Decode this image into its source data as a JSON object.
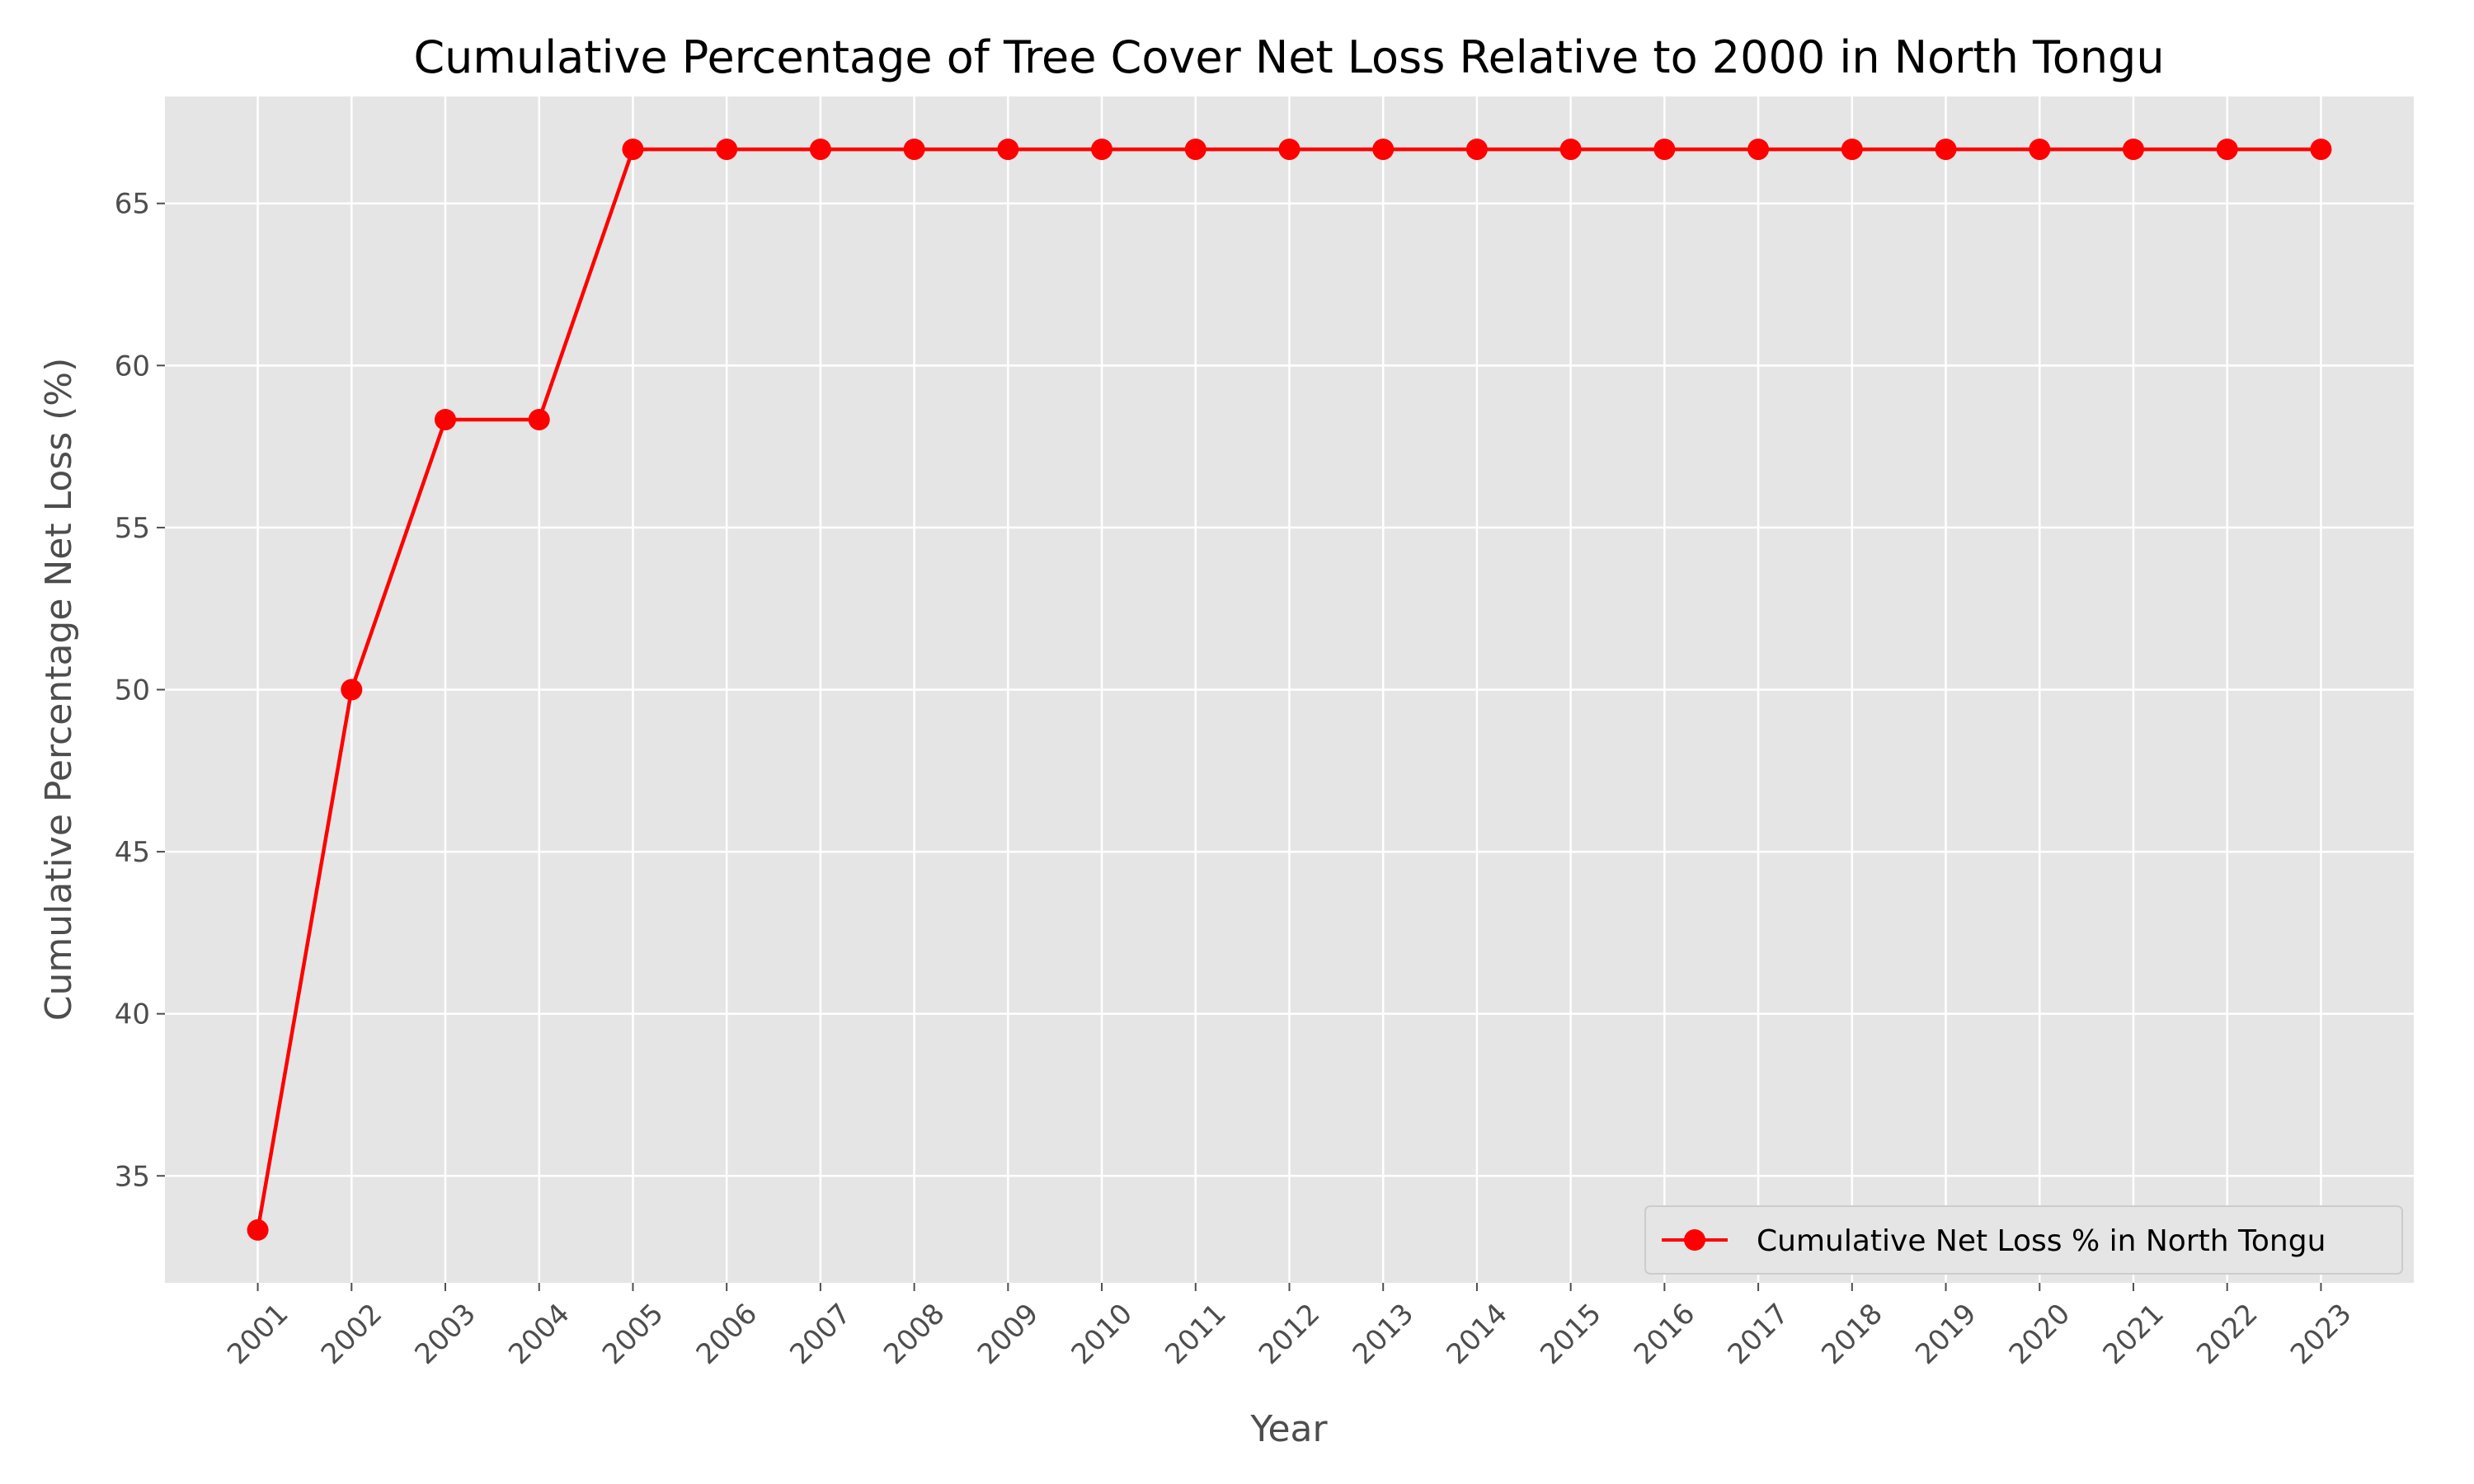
{
  "chart_data": {
    "type": "line",
    "title": "Cumulative Percentage of Tree Cover Net Loss Relative to 2000 in North Tongu",
    "xlabel": "Year",
    "ylabel": "Cumulative Percentage Net Loss (%)",
    "categories": [
      "2001",
      "2002",
      "2003",
      "2004",
      "2005",
      "2006",
      "2007",
      "2008",
      "2009",
      "2010",
      "2011",
      "2012",
      "2013",
      "2014",
      "2015",
      "2016",
      "2017",
      "2018",
      "2019",
      "2020",
      "2021",
      "2022",
      "2023"
    ],
    "series": [
      {
        "name": "Cumulative Net Loss % in North Tongu",
        "color": "#ff0000",
        "values": [
          33.33,
          50.0,
          58.33,
          58.33,
          66.67,
          66.67,
          66.67,
          66.67,
          66.67,
          66.67,
          66.67,
          66.67,
          66.67,
          66.67,
          66.67,
          66.67,
          66.67,
          66.67,
          66.67,
          66.67,
          66.67,
          66.67,
          66.67
        ]
      }
    ],
    "ylim": [
      31.7,
      68.3
    ],
    "yticks": [
      35,
      40,
      45,
      50,
      55,
      60,
      65
    ],
    "grid": true,
    "legend_position": "lower-right",
    "colors": {
      "plot_background": "#e5e5e5",
      "grid": "#ffffff",
      "series": "#ff0000"
    }
  }
}
